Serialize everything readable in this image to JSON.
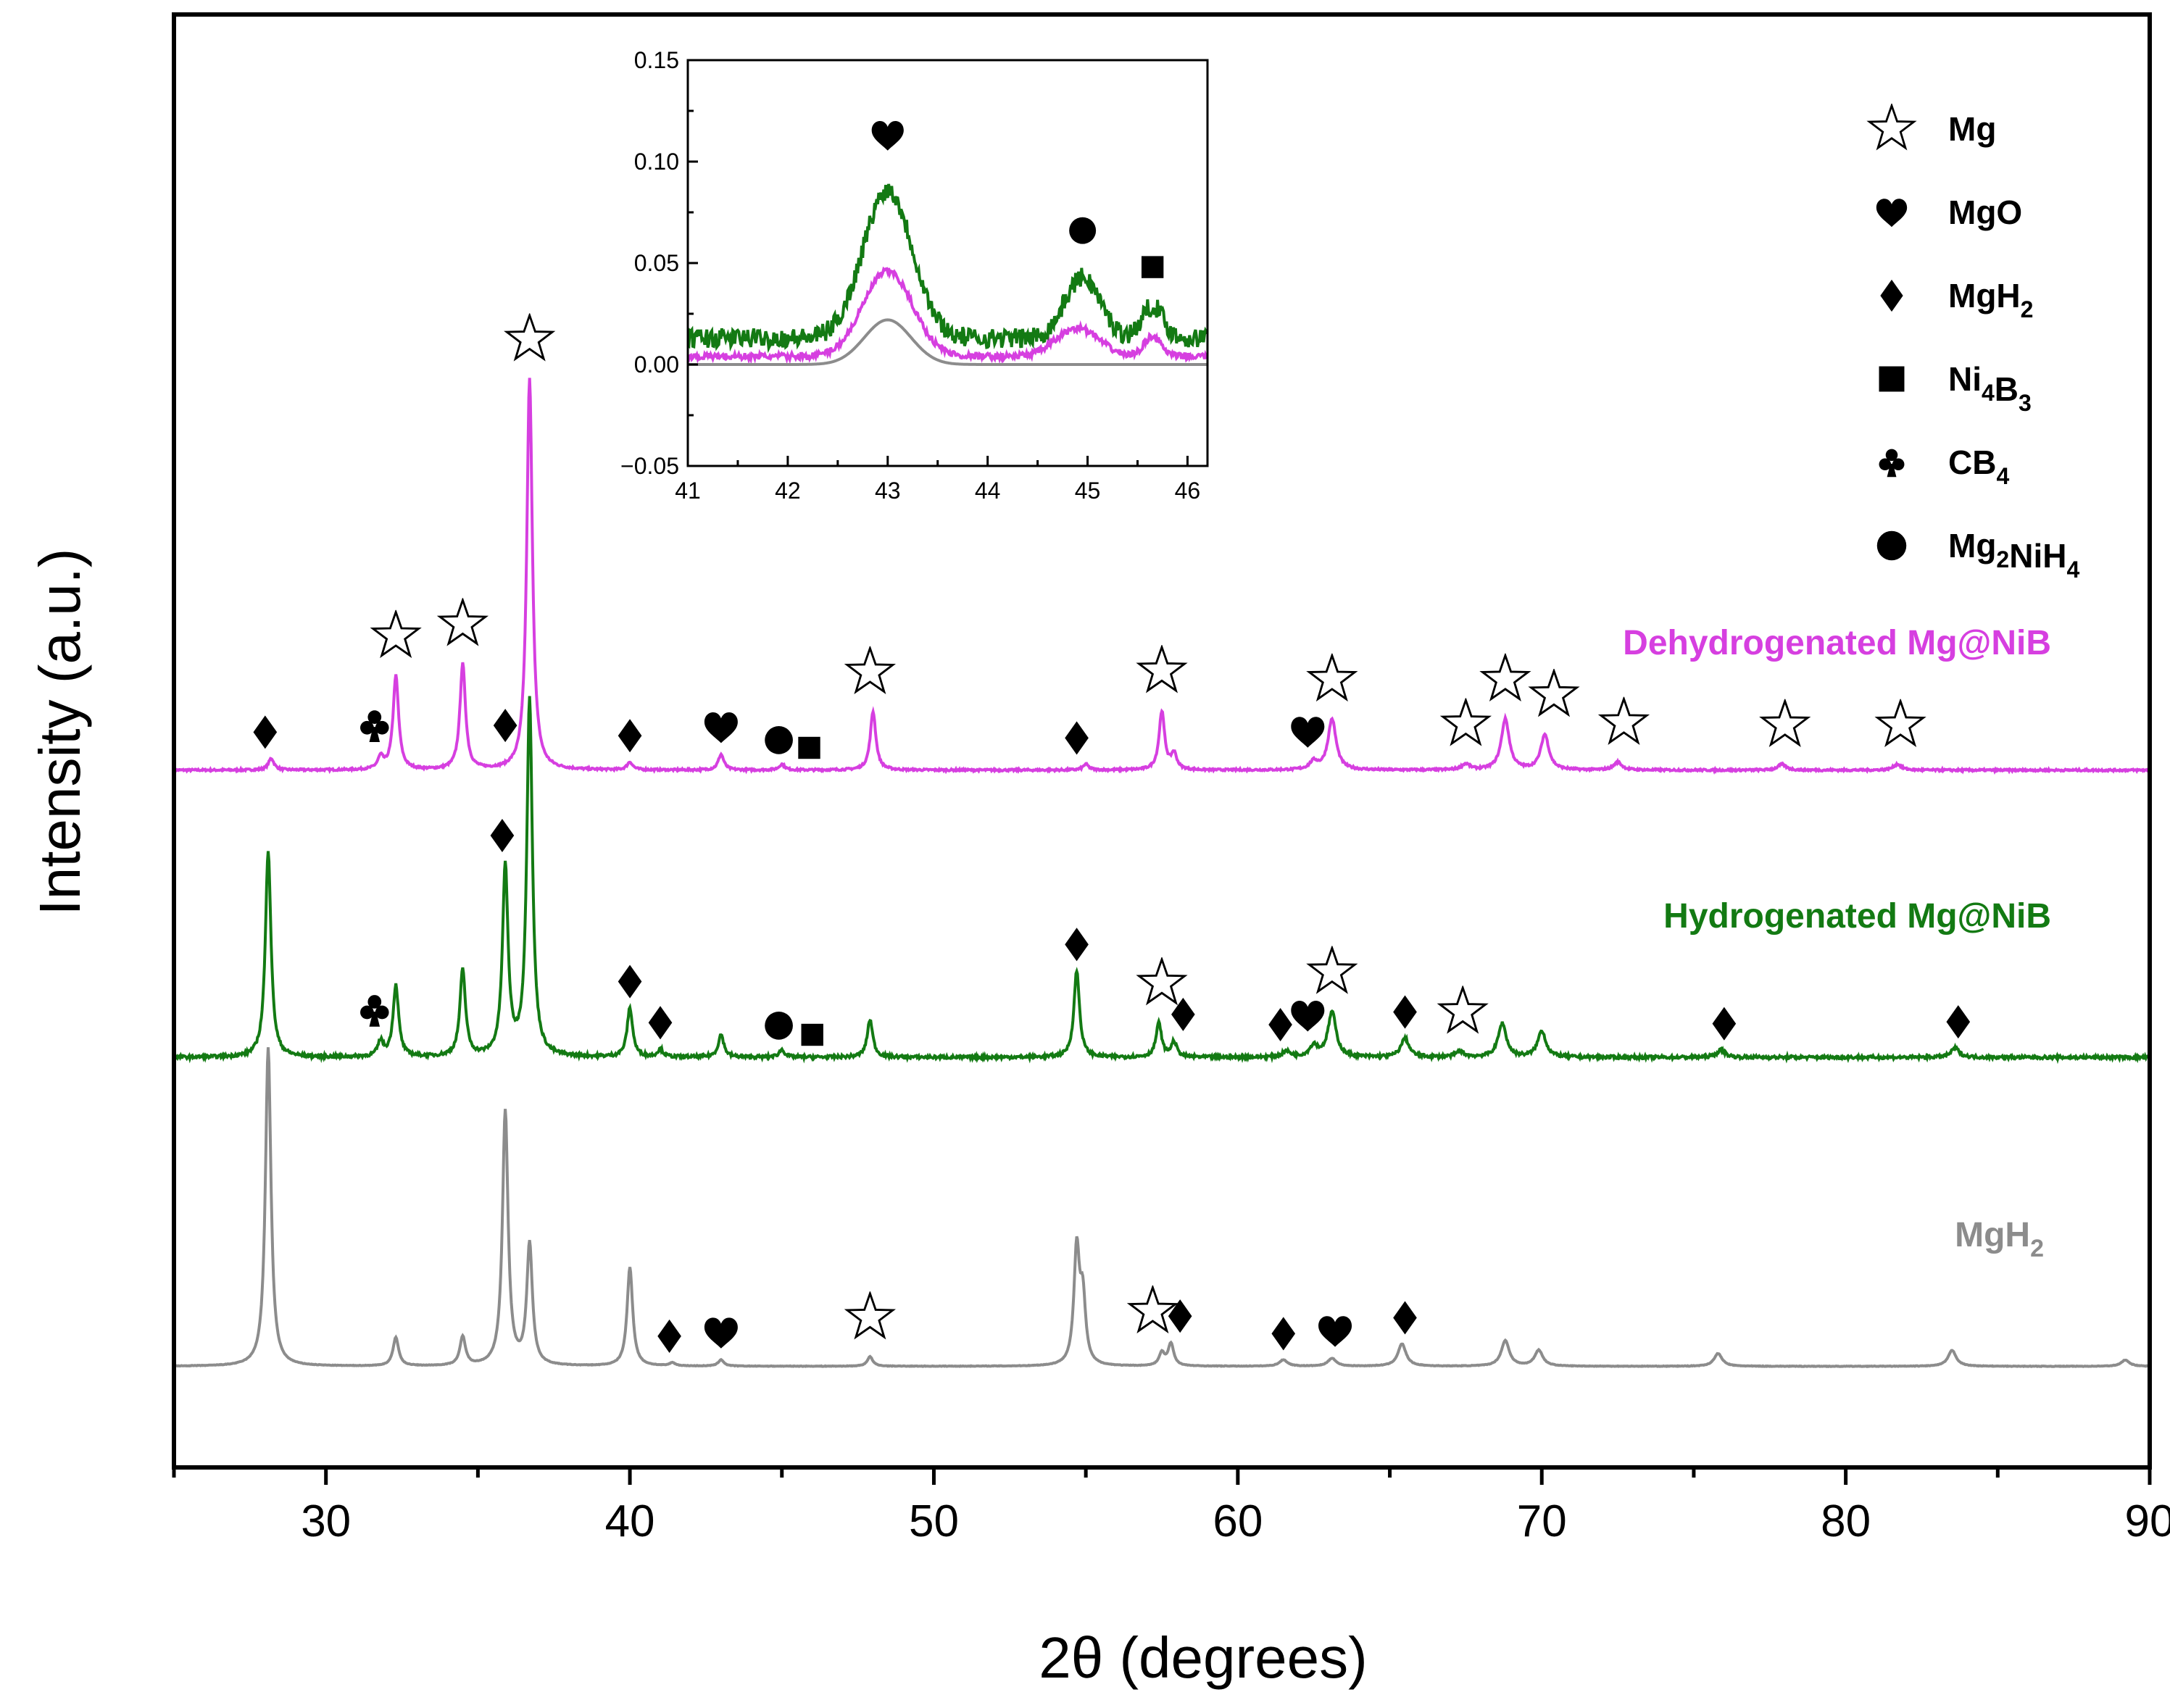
{
  "chart_data": {
    "type": "line",
    "title": "",
    "xlabel": "2θ (degrees)",
    "ylabel": "Intensity (a.u.)",
    "xlim": [
      25,
      90
    ],
    "x_ticks": [
      "30",
      "40",
      "50",
      "60",
      "70",
      "80",
      "90"
    ],
    "colors": {
      "dehydrogenated": "#d63fe0",
      "hydrogenated": "#137a13",
      "mgh2": "#8c8c8c"
    },
    "series": [
      {
        "key": "dehydrogenated",
        "name": "Dehydrogenated Mg@NiB",
        "baseline_fraction": 0.085,
        "noise_fraction": 0.0025,
        "peaks": [
          [
            28.2,
            0.03
          ],
          [
            31.8,
            0.03
          ],
          [
            32.3,
            0.24
          ],
          [
            34.5,
            0.27
          ],
          [
            36.7,
            1.0
          ],
          [
            40.0,
            0.02
          ],
          [
            43.0,
            0.04
          ],
          [
            45.0,
            0.015
          ],
          [
            48.0,
            0.15
          ],
          [
            55.0,
            0.015
          ],
          [
            57.5,
            0.15
          ],
          [
            57.9,
            0.04
          ],
          [
            62.5,
            0.02
          ],
          [
            63.1,
            0.13
          ],
          [
            67.5,
            0.015
          ],
          [
            68.8,
            0.13
          ],
          [
            70.1,
            0.09
          ],
          [
            72.5,
            0.02
          ],
          [
            77.9,
            0.015
          ],
          [
            81.7,
            0.015
          ]
        ]
      },
      {
        "key": "hydrogenated",
        "name": "Hydrogenated Mg@NiB",
        "baseline_fraction": 0.085,
        "noise_fraction": 0.004,
        "peaks": [
          [
            28.1,
            0.55
          ],
          [
            31.8,
            0.04
          ],
          [
            32.3,
            0.19
          ],
          [
            34.5,
            0.23
          ],
          [
            35.9,
            0.5
          ],
          [
            36.7,
            0.95
          ],
          [
            40.0,
            0.13
          ],
          [
            41.0,
            0.02
          ],
          [
            43.0,
            0.06
          ],
          [
            45.0,
            0.02
          ],
          [
            47.9,
            0.1
          ],
          [
            54.7,
            0.23
          ],
          [
            57.4,
            0.09
          ],
          [
            57.9,
            0.04
          ],
          [
            61.6,
            0.015
          ],
          [
            62.5,
            0.03
          ],
          [
            63.1,
            0.12
          ],
          [
            65.5,
            0.05
          ],
          [
            67.3,
            0.015
          ],
          [
            68.7,
            0.09
          ],
          [
            70.0,
            0.07
          ],
          [
            75.9,
            0.02
          ],
          [
            83.6,
            0.025
          ]
        ]
      },
      {
        "key": "mgh2",
        "name": "MgH2",
        "baseline_fraction": 0.085,
        "noise_fraction": 0.0008,
        "peaks": [
          [
            28.1,
            1.0
          ],
          [
            32.3,
            0.09
          ],
          [
            34.5,
            0.09
          ],
          [
            35.9,
            0.8
          ],
          [
            36.7,
            0.38
          ],
          [
            40.0,
            0.31
          ],
          [
            41.4,
            0.01
          ],
          [
            43.0,
            0.02
          ],
          [
            47.9,
            0.03
          ],
          [
            54.7,
            0.36
          ],
          [
            54.9,
            0.2
          ],
          [
            57.5,
            0.04
          ],
          [
            57.8,
            0.07
          ],
          [
            61.5,
            0.02
          ],
          [
            63.1,
            0.025
          ],
          [
            65.4,
            0.07
          ],
          [
            68.8,
            0.08
          ],
          [
            69.9,
            0.05
          ],
          [
            75.8,
            0.04
          ],
          [
            83.5,
            0.05
          ],
          [
            89.2,
            0.02
          ]
        ]
      }
    ],
    "curve_labels": [
      {
        "text": "Dehydrogenated Mg@NiB",
        "series": "dehydrogenated"
      },
      {
        "text": "Hydrogenated Mg@NiB",
        "series": "hydrogenated"
      },
      {
        "text": "MgH",
        "sub": "2",
        "series": "mgh2"
      }
    ],
    "phase_markers": [
      {
        "phase": "MgH2",
        "symbol": "diamond",
        "two_theta": 28.0,
        "curve": "dehydrogenated"
      },
      {
        "phase": "CB4",
        "symbol": "club",
        "two_theta": 31.6,
        "curve": "dehydrogenated"
      },
      {
        "phase": "Mg",
        "symbol": "star",
        "two_theta": 32.3,
        "curve": "dehydrogenated"
      },
      {
        "phase": "Mg",
        "symbol": "star",
        "two_theta": 34.5,
        "curve": "dehydrogenated"
      },
      {
        "phase": "MgH2",
        "symbol": "diamond",
        "two_theta": 35.9,
        "curve": "dehydrogenated"
      },
      {
        "phase": "Mg",
        "symbol": "star",
        "two_theta": 36.7,
        "curve": "dehydrogenated"
      },
      {
        "phase": "MgH2",
        "symbol": "diamond",
        "two_theta": 40.0,
        "curve": "dehydrogenated"
      },
      {
        "phase": "MgO",
        "symbol": "heart",
        "two_theta": 43.0,
        "curve": "dehydrogenated"
      },
      {
        "phase": "Mg2NiH4",
        "symbol": "circle",
        "two_theta": 44.9,
        "curve": "dehydrogenated"
      },
      {
        "phase": "Ni4B3",
        "symbol": "square",
        "two_theta": 45.9,
        "curve": "dehydrogenated"
      },
      {
        "phase": "Mg",
        "symbol": "star",
        "two_theta": 47.9,
        "curve": "dehydrogenated"
      },
      {
        "phase": "MgH2",
        "symbol": "diamond",
        "two_theta": 54.7,
        "curve": "dehydrogenated"
      },
      {
        "phase": "Mg",
        "symbol": "star",
        "two_theta": 57.5,
        "curve": "dehydrogenated"
      },
      {
        "phase": "MgO",
        "symbol": "heart",
        "two_theta": 62.3,
        "curve": "dehydrogenated"
      },
      {
        "phase": "Mg",
        "symbol": "star",
        "two_theta": 63.1,
        "curve": "dehydrogenated"
      },
      {
        "phase": "Mg",
        "symbol": "star",
        "two_theta": 67.5,
        "curve": "dehydrogenated"
      },
      {
        "phase": "Mg",
        "symbol": "star",
        "two_theta": 68.8,
        "curve": "dehydrogenated"
      },
      {
        "phase": "Mg",
        "symbol": "star",
        "two_theta": 70.4,
        "curve": "dehydrogenated"
      },
      {
        "phase": "Mg",
        "symbol": "star",
        "two_theta": 72.7,
        "curve": "dehydrogenated"
      },
      {
        "phase": "Mg",
        "symbol": "star",
        "two_theta": 78.0,
        "curve": "dehydrogenated"
      },
      {
        "phase": "Mg",
        "symbol": "star",
        "two_theta": 81.8,
        "curve": "dehydrogenated"
      },
      {
        "phase": "MgH2",
        "symbol": "diamond",
        "two_theta": 35.8,
        "curve": "hydrogenated"
      },
      {
        "phase": "CB4",
        "symbol": "club",
        "two_theta": 31.6,
        "curve": "hydrogenated"
      },
      {
        "phase": "MgH2",
        "symbol": "diamond",
        "two_theta": 40.0,
        "curve": "hydrogenated"
      },
      {
        "phase": "MgH2",
        "symbol": "diamond",
        "two_theta": 41.0,
        "curve": "hydrogenated"
      },
      {
        "phase": "Mg2NiH4",
        "symbol": "circle",
        "two_theta": 44.9,
        "curve": "hydrogenated"
      },
      {
        "phase": "Ni4B3",
        "symbol": "square",
        "two_theta": 46.0,
        "curve": "hydrogenated"
      },
      {
        "phase": "MgH2",
        "symbol": "diamond",
        "two_theta": 54.7,
        "curve": "hydrogenated"
      },
      {
        "phase": "Mg",
        "symbol": "star",
        "two_theta": 57.5,
        "curve": "hydrogenated"
      },
      {
        "phase": "MgH2",
        "symbol": "diamond",
        "two_theta": 58.2,
        "curve": "hydrogenated"
      },
      {
        "phase": "MgH2",
        "symbol": "diamond",
        "two_theta": 61.4,
        "curve": "hydrogenated"
      },
      {
        "phase": "MgO",
        "symbol": "heart",
        "two_theta": 62.3,
        "curve": "hydrogenated"
      },
      {
        "phase": "Mg",
        "symbol": "star",
        "two_theta": 63.1,
        "curve": "hydrogenated"
      },
      {
        "phase": "MgH2",
        "symbol": "diamond",
        "two_theta": 65.5,
        "curve": "hydrogenated"
      },
      {
        "phase": "Mg",
        "symbol": "star",
        "two_theta": 67.4,
        "curve": "hydrogenated"
      },
      {
        "phase": "MgH2",
        "symbol": "diamond",
        "two_theta": 76.0,
        "curve": "hydrogenated"
      },
      {
        "phase": "MgH2",
        "symbol": "diamond",
        "two_theta": 83.7,
        "curve": "hydrogenated"
      },
      {
        "phase": "MgH2",
        "symbol": "diamond",
        "two_theta": 41.3,
        "curve": "mgh2"
      },
      {
        "phase": "MgO",
        "symbol": "heart",
        "two_theta": 43.0,
        "curve": "mgh2"
      },
      {
        "phase": "Mg",
        "symbol": "star",
        "two_theta": 47.9,
        "curve": "mgh2"
      },
      {
        "phase": "Mg",
        "symbol": "star",
        "two_theta": 57.2,
        "curve": "mgh2"
      },
      {
        "phase": "MgH2",
        "symbol": "diamond",
        "two_theta": 58.1,
        "curve": "mgh2"
      },
      {
        "phase": "MgH2",
        "symbol": "diamond",
        "two_theta": 61.5,
        "curve": "mgh2"
      },
      {
        "phase": "MgO",
        "symbol": "heart",
        "two_theta": 63.2,
        "curve": "mgh2"
      },
      {
        "phase": "MgH2",
        "symbol": "diamond",
        "two_theta": 65.5,
        "curve": "mgh2"
      }
    ],
    "legend": {
      "placement": "top-right",
      "entries": [
        {
          "symbol": "star",
          "label": "Mg",
          "parts": [
            [
              "Mg",
              ""
            ]
          ]
        },
        {
          "symbol": "heart",
          "label": "MgO",
          "parts": [
            [
              "MgO",
              ""
            ]
          ]
        },
        {
          "symbol": "diamond",
          "label": "MgH2",
          "parts": [
            [
              "MgH",
              "2"
            ]
          ]
        },
        {
          "symbol": "square",
          "label": "Ni4B3",
          "parts": [
            [
              "Ni",
              "4"
            ],
            [
              "B",
              "3"
            ]
          ]
        },
        {
          "symbol": "club",
          "label": "CB4",
          "parts": [
            [
              "CB",
              "4"
            ]
          ]
        },
        {
          "symbol": "circle",
          "label": "Mg2NiH4",
          "parts": [
            [
              "Mg",
              "2"
            ],
            [
              "NiH",
              "4"
            ]
          ]
        }
      ]
    },
    "inset": {
      "xlim": [
        41,
        46.2
      ],
      "ylim": [
        -0.05,
        0.15
      ],
      "x_ticks": [
        "41",
        "42",
        "43",
        "44",
        "45",
        "46"
      ],
      "y_ticks": [
        "-0.05",
        "0.00",
        "0.05",
        "0.10",
        "0.15"
      ],
      "series": [
        {
          "key": "hydrogenated",
          "baseline": 0.013,
          "noise": 0.006,
          "peaks": [
            [
              43.0,
              0.073,
              0.35
            ],
            [
              44.95,
              0.03,
              0.25
            ],
            [
              45.65,
              0.016,
              0.15
            ]
          ]
        },
        {
          "key": "dehydrogenated",
          "baseline": 0.004,
          "noise": 0.002,
          "peaks": [
            [
              43.0,
              0.042,
              0.35
            ],
            [
              44.9,
              0.014,
              0.3
            ],
            [
              45.65,
              0.01,
              0.12
            ]
          ]
        },
        {
          "key": "mgh2",
          "baseline": 0.0,
          "noise": 0.0,
          "peaks": [
            [
              43.0,
              0.022,
              0.33
            ]
          ]
        }
      ],
      "markers": [
        {
          "symbol": "heart",
          "x": 43.0,
          "y": 0.113
        },
        {
          "symbol": "circle",
          "x": 44.95,
          "y": 0.066
        },
        {
          "symbol": "square",
          "x": 45.65,
          "y": 0.048
        }
      ]
    }
  }
}
